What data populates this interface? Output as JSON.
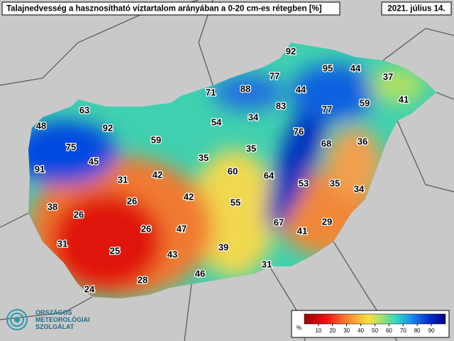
{
  "header": {
    "title": "Talajnedvesség a hasznosítható víztartalom arányában a 0-20 cm-es rétegben [%]",
    "date": "2021. július 14."
  },
  "stations": [
    92,
    95,
    44,
    37,
    77,
    88,
    71,
    44,
    41,
    63,
    83,
    77,
    59,
    48,
    92,
    54,
    34,
    76,
    59,
    75,
    68,
    36,
    45,
    35,
    35,
    91,
    31,
    42,
    60,
    64,
    53,
    35,
    34,
    26,
    42,
    55,
    38,
    26,
    67,
    41,
    29,
    26,
    47,
    31,
    25,
    39,
    43,
    46,
    31,
    28,
    24
  ],
  "legend": {
    "unit": "%",
    "range": [
      0,
      100
    ],
    "ticks": [
      10,
      20,
      30,
      40,
      50,
      60,
      70,
      80,
      90
    ]
  },
  "logo": [
    "ORSZÁGOS",
    "METEOROLÓGIAI",
    "SZOLGÁLAT"
  ]
}
